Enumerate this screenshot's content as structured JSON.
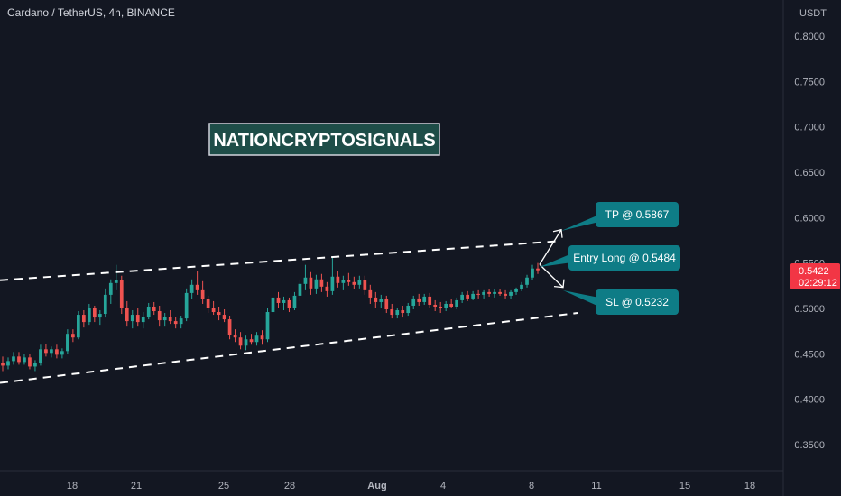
{
  "header": {
    "symbol_title": "Cardano / TetherUS, 4h, BINANCE",
    "currency": "USDT"
  },
  "watermark": "NATIONCRYPTOSIGNALS",
  "price_tag": {
    "price": "0.5422",
    "countdown": "02:29:12",
    "color": "#f23645"
  },
  "callouts": {
    "tp": "TP @ 0.5867",
    "entry": "Entry Long @ 0.5484",
    "sl": "SL @ 0.5232",
    "color": "#0e7c86"
  },
  "colors": {
    "up": "#26a69a",
    "down": "#ef5350",
    "background": "#131722",
    "channel": "#ffffff"
  },
  "chart_data": {
    "type": "candlestick",
    "y_ticks": [
      "0.8000",
      "0.7500",
      "0.7000",
      "0.6500",
      "0.6000",
      "0.5500",
      "0.5000",
      "0.4500",
      "0.4000",
      "0.3500"
    ],
    "x_ticks": [
      "18",
      "21",
      "25",
      "28",
      "Aug",
      "4",
      "8",
      "11",
      "15",
      "18"
    ],
    "ylim": [
      0.33,
      0.83
    ],
    "grid": false,
    "channel": {
      "upper": [
        [
          0,
          0.531
        ],
        [
          618,
          0.574
        ]
      ],
      "lower": [
        [
          0,
          0.418
        ],
        [
          640,
          0.495
        ]
      ]
    },
    "levels": {
      "tp": 0.5867,
      "entry": 0.5484,
      "sl": 0.5232,
      "last": 0.5422
    },
    "candles": [
      {
        "o": 0.44,
        "h": 0.447,
        "l": 0.431,
        "c": 0.437
      },
      {
        "o": 0.437,
        "h": 0.446,
        "l": 0.433,
        "c": 0.442
      },
      {
        "o": 0.442,
        "h": 0.452,
        "l": 0.438,
        "c": 0.447
      },
      {
        "o": 0.447,
        "h": 0.452,
        "l": 0.438,
        "c": 0.441
      },
      {
        "o": 0.441,
        "h": 0.45,
        "l": 0.438,
        "c": 0.446
      },
      {
        "o": 0.446,
        "h": 0.45,
        "l": 0.433,
        "c": 0.436
      },
      {
        "o": 0.436,
        "h": 0.443,
        "l": 0.431,
        "c": 0.44
      },
      {
        "o": 0.44,
        "h": 0.46,
        "l": 0.437,
        "c": 0.455
      },
      {
        "o": 0.455,
        "h": 0.461,
        "l": 0.447,
        "c": 0.451
      },
      {
        "o": 0.451,
        "h": 0.458,
        "l": 0.446,
        "c": 0.455
      },
      {
        "o": 0.455,
        "h": 0.46,
        "l": 0.445,
        "c": 0.449
      },
      {
        "o": 0.449,
        "h": 0.456,
        "l": 0.445,
        "c": 0.453
      },
      {
        "o": 0.453,
        "h": 0.477,
        "l": 0.45,
        "c": 0.472
      },
      {
        "o": 0.472,
        "h": 0.477,
        "l": 0.463,
        "c": 0.468
      },
      {
        "o": 0.468,
        "h": 0.497,
        "l": 0.466,
        "c": 0.493
      },
      {
        "o": 0.493,
        "h": 0.498,
        "l": 0.479,
        "c": 0.485
      },
      {
        "o": 0.485,
        "h": 0.505,
        "l": 0.482,
        "c": 0.5
      },
      {
        "o": 0.5,
        "h": 0.503,
        "l": 0.485,
        "c": 0.49
      },
      {
        "o": 0.49,
        "h": 0.498,
        "l": 0.482,
        "c": 0.494
      },
      {
        "o": 0.494,
        "h": 0.522,
        "l": 0.49,
        "c": 0.515
      },
      {
        "o": 0.515,
        "h": 0.532,
        "l": 0.505,
        "c": 0.528
      },
      {
        "o": 0.528,
        "h": 0.548,
        "l": 0.52,
        "c": 0.531
      },
      {
        "o": 0.531,
        "h": 0.536,
        "l": 0.494,
        "c": 0.501
      },
      {
        "o": 0.501,
        "h": 0.508,
        "l": 0.48,
        "c": 0.486
      },
      {
        "o": 0.486,
        "h": 0.498,
        "l": 0.478,
        "c": 0.493
      },
      {
        "o": 0.493,
        "h": 0.5,
        "l": 0.48,
        "c": 0.485
      },
      {
        "o": 0.485,
        "h": 0.496,
        "l": 0.478,
        "c": 0.491
      },
      {
        "o": 0.491,
        "h": 0.506,
        "l": 0.488,
        "c": 0.502
      },
      {
        "o": 0.502,
        "h": 0.507,
        "l": 0.493,
        "c": 0.497
      },
      {
        "o": 0.497,
        "h": 0.503,
        "l": 0.48,
        "c": 0.487
      },
      {
        "o": 0.487,
        "h": 0.495,
        "l": 0.48,
        "c": 0.491
      },
      {
        "o": 0.491,
        "h": 0.498,
        "l": 0.483,
        "c": 0.486
      },
      {
        "o": 0.486,
        "h": 0.491,
        "l": 0.478,
        "c": 0.483
      },
      {
        "o": 0.483,
        "h": 0.492,
        "l": 0.478,
        "c": 0.489
      },
      {
        "o": 0.489,
        "h": 0.522,
        "l": 0.486,
        "c": 0.517
      },
      {
        "o": 0.517,
        "h": 0.532,
        "l": 0.51,
        "c": 0.526
      },
      {
        "o": 0.526,
        "h": 0.541,
        "l": 0.515,
        "c": 0.52
      },
      {
        "o": 0.52,
        "h": 0.53,
        "l": 0.505,
        "c": 0.51
      },
      {
        "o": 0.51,
        "h": 0.514,
        "l": 0.495,
        "c": 0.5
      },
      {
        "o": 0.5,
        "h": 0.508,
        "l": 0.493,
        "c": 0.496
      },
      {
        "o": 0.496,
        "h": 0.502,
        "l": 0.487,
        "c": 0.493
      },
      {
        "o": 0.493,
        "h": 0.499,
        "l": 0.485,
        "c": 0.488
      },
      {
        "o": 0.488,
        "h": 0.492,
        "l": 0.466,
        "c": 0.471
      },
      {
        "o": 0.471,
        "h": 0.477,
        "l": 0.463,
        "c": 0.468
      },
      {
        "o": 0.468,
        "h": 0.474,
        "l": 0.455,
        "c": 0.459
      },
      {
        "o": 0.459,
        "h": 0.47,
        "l": 0.454,
        "c": 0.466
      },
      {
        "o": 0.466,
        "h": 0.472,
        "l": 0.46,
        "c": 0.463
      },
      {
        "o": 0.463,
        "h": 0.474,
        "l": 0.459,
        "c": 0.47
      },
      {
        "o": 0.47,
        "h": 0.476,
        "l": 0.46,
        "c": 0.466
      },
      {
        "o": 0.466,
        "h": 0.5,
        "l": 0.463,
        "c": 0.496
      },
      {
        "o": 0.496,
        "h": 0.517,
        "l": 0.49,
        "c": 0.512
      },
      {
        "o": 0.512,
        "h": 0.518,
        "l": 0.5,
        "c": 0.506
      },
      {
        "o": 0.506,
        "h": 0.513,
        "l": 0.498,
        "c": 0.509
      },
      {
        "o": 0.509,
        "h": 0.512,
        "l": 0.496,
        "c": 0.501
      },
      {
        "o": 0.501,
        "h": 0.518,
        "l": 0.498,
        "c": 0.514
      },
      {
        "o": 0.514,
        "h": 0.532,
        "l": 0.508,
        "c": 0.527
      },
      {
        "o": 0.527,
        "h": 0.548,
        "l": 0.52,
        "c": 0.534
      },
      {
        "o": 0.534,
        "h": 0.54,
        "l": 0.515,
        "c": 0.522
      },
      {
        "o": 0.522,
        "h": 0.537,
        "l": 0.516,
        "c": 0.532
      },
      {
        "o": 0.532,
        "h": 0.538,
        "l": 0.518,
        "c": 0.524
      },
      {
        "o": 0.524,
        "h": 0.529,
        "l": 0.513,
        "c": 0.519
      },
      {
        "o": 0.519,
        "h": 0.557,
        "l": 0.515,
        "c": 0.535
      },
      {
        "o": 0.535,
        "h": 0.541,
        "l": 0.523,
        "c": 0.528
      },
      {
        "o": 0.528,
        "h": 0.536,
        "l": 0.52,
        "c": 0.531
      },
      {
        "o": 0.531,
        "h": 0.539,
        "l": 0.525,
        "c": 0.529
      },
      {
        "o": 0.529,
        "h": 0.535,
        "l": 0.521,
        "c": 0.526
      },
      {
        "o": 0.526,
        "h": 0.536,
        "l": 0.522,
        "c": 0.531
      },
      {
        "o": 0.531,
        "h": 0.536,
        "l": 0.515,
        "c": 0.52
      },
      {
        "o": 0.52,
        "h": 0.526,
        "l": 0.505,
        "c": 0.512
      },
      {
        "o": 0.512,
        "h": 0.518,
        "l": 0.5,
        "c": 0.507
      },
      {
        "o": 0.507,
        "h": 0.515,
        "l": 0.5,
        "c": 0.51
      },
      {
        "o": 0.51,
        "h": 0.514,
        "l": 0.495,
        "c": 0.499
      },
      {
        "o": 0.499,
        "h": 0.505,
        "l": 0.489,
        "c": 0.493
      },
      {
        "o": 0.493,
        "h": 0.501,
        "l": 0.489,
        "c": 0.498
      },
      {
        "o": 0.498,
        "h": 0.503,
        "l": 0.49,
        "c": 0.495
      },
      {
        "o": 0.495,
        "h": 0.506,
        "l": 0.492,
        "c": 0.503
      },
      {
        "o": 0.503,
        "h": 0.514,
        "l": 0.499,
        "c": 0.511
      },
      {
        "o": 0.511,
        "h": 0.516,
        "l": 0.503,
        "c": 0.507
      },
      {
        "o": 0.507,
        "h": 0.516,
        "l": 0.504,
        "c": 0.513
      },
      {
        "o": 0.513,
        "h": 0.517,
        "l": 0.5,
        "c": 0.504
      },
      {
        "o": 0.504,
        "h": 0.509,
        "l": 0.497,
        "c": 0.502
      },
      {
        "o": 0.502,
        "h": 0.507,
        "l": 0.495,
        "c": 0.5
      },
      {
        "o": 0.5,
        "h": 0.508,
        "l": 0.497,
        "c": 0.505
      },
      {
        "o": 0.505,
        "h": 0.51,
        "l": 0.5,
        "c": 0.502
      },
      {
        "o": 0.502,
        "h": 0.512,
        "l": 0.499,
        "c": 0.509
      },
      {
        "o": 0.509,
        "h": 0.518,
        "l": 0.506,
        "c": 0.515
      },
      {
        "o": 0.515,
        "h": 0.519,
        "l": 0.508,
        "c": 0.511
      },
      {
        "o": 0.511,
        "h": 0.519,
        "l": 0.509,
        "c": 0.516
      },
      {
        "o": 0.516,
        "h": 0.52,
        "l": 0.511,
        "c": 0.515
      },
      {
        "o": 0.515,
        "h": 0.52,
        "l": 0.511,
        "c": 0.518
      },
      {
        "o": 0.518,
        "h": 0.521,
        "l": 0.513,
        "c": 0.516
      },
      {
        "o": 0.516,
        "h": 0.521,
        "l": 0.512,
        "c": 0.518
      },
      {
        "o": 0.518,
        "h": 0.521,
        "l": 0.514,
        "c": 0.516
      },
      {
        "o": 0.516,
        "h": 0.52,
        "l": 0.511,
        "c": 0.514
      },
      {
        "o": 0.514,
        "h": 0.52,
        "l": 0.51,
        "c": 0.518
      },
      {
        "o": 0.518,
        "h": 0.523,
        "l": 0.515,
        "c": 0.521
      },
      {
        "o": 0.521,
        "h": 0.529,
        "l": 0.519,
        "c": 0.526
      },
      {
        "o": 0.526,
        "h": 0.537,
        "l": 0.523,
        "c": 0.534
      },
      {
        "o": 0.534,
        "h": 0.548,
        "l": 0.531,
        "c": 0.544
      },
      {
        "o": 0.544,
        "h": 0.55,
        "l": 0.538,
        "c": 0.542
      }
    ]
  }
}
